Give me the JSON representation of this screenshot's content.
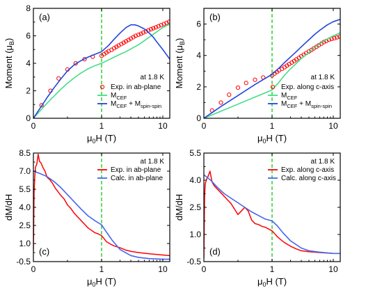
{
  "chart_data": [
    {
      "id": "a",
      "type": "line",
      "panel_label": "(a)",
      "ylabel": {
        "main": "Moment (μ",
        "sub": "B",
        "end": ")"
      },
      "xlabel": {
        "main": "μ",
        "sub": "0",
        "end": "H (T)"
      },
      "annotation": "at 1.8 K",
      "x_scale": "linear below 1 T, logarithmic above 1 T",
      "xlim": [
        0,
        13
      ],
      "ylim": [
        0,
        8
      ],
      "xticks": [
        0,
        1,
        10
      ],
      "yticks": [
        0,
        2,
        4,
        6,
        8
      ],
      "vline_x": 1,
      "grid": false,
      "legend_position": "right-center",
      "series": [
        {
          "legend": {
            "main": "Exp. in ab-plane",
            "sub": "",
            "end": ""
          },
          "style": "open-circle",
          "color": "#ff0000",
          "x": [
            0.12,
            0.25,
            0.37,
            0.5,
            0.62,
            0.75,
            0.87,
            1.0,
            1.1,
            1.2,
            1.3,
            1.45,
            1.6,
            1.75,
            1.9,
            2.1,
            2.3,
            2.5,
            2.75,
            3.0,
            3.3,
            3.6,
            4.0,
            4.4,
            4.8,
            5.3,
            5.8,
            6.4,
            7.0,
            7.7,
            8.5,
            9.4,
            10.4,
            11.5,
            12.7
          ],
          "y": [
            0.95,
            2.0,
            2.9,
            3.55,
            4.0,
            4.3,
            4.48,
            4.55,
            4.67,
            4.78,
            4.88,
            4.98,
            5.1,
            5.2,
            5.3,
            5.4,
            5.5,
            5.6,
            5.7,
            5.8,
            5.9,
            6.0,
            6.08,
            6.15,
            6.24,
            6.32,
            6.4,
            6.48,
            6.55,
            6.62,
            6.7,
            6.78,
            6.86,
            6.94,
            7.02
          ]
        },
        {
          "legend": {
            "main": "M",
            "sub": "CEF",
            "end": ""
          },
          "style": "line",
          "color": "#44dd88",
          "x": [
            0,
            0.1,
            0.2,
            0.3,
            0.4,
            0.5,
            0.6,
            0.7,
            0.8,
            0.9,
            1.0,
            1.3,
            1.6,
            2,
            2.5,
            3,
            4,
            5,
            6,
            8,
            10,
            13
          ],
          "y": [
            0,
            0.55,
            1.1,
            1.6,
            2.1,
            2.55,
            2.95,
            3.3,
            3.6,
            3.82,
            4.0,
            4.25,
            4.45,
            4.65,
            4.85,
            5.05,
            5.35,
            5.65,
            5.9,
            6.3,
            6.6,
            6.85
          ]
        },
        {
          "legend": {
            "main": "M",
            "sub": "CEF",
            "end": " + M",
            "sub2": "spin-spin"
          },
          "style": "line",
          "color": "#2244dd",
          "x": [
            0,
            0.1,
            0.2,
            0.3,
            0.4,
            0.5,
            0.6,
            0.7,
            0.8,
            0.9,
            1.0,
            1.3,
            1.6,
            2,
            2.5,
            3,
            3.5,
            4,
            5,
            6,
            7,
            8,
            10,
            13
          ],
          "y": [
            0,
            0.75,
            1.5,
            2.2,
            2.85,
            3.45,
            3.9,
            4.2,
            4.45,
            4.65,
            4.85,
            5.3,
            5.75,
            6.2,
            6.6,
            6.8,
            6.8,
            6.72,
            6.5,
            6.2,
            5.9,
            5.55,
            5.0,
            4.3
          ]
        }
      ]
    },
    {
      "id": "b",
      "type": "line",
      "panel_label": "(b)",
      "ylabel": {
        "main": "Moment (μ",
        "sub": "B",
        "end": ")"
      },
      "xlabel": {
        "main": "μ",
        "sub": "0",
        "end": "H (T)"
      },
      "annotation": "at 1.8 K",
      "x_scale": "linear below 1 T, logarithmic above 1 T",
      "xlim": [
        0,
        13
      ],
      "ylim": [
        0,
        7
      ],
      "xticks": [
        0,
        1,
        10
      ],
      "yticks": [
        0,
        2,
        4,
        6
      ],
      "vline_x": 1,
      "grid": false,
      "legend_position": "right-center",
      "series": [
        {
          "legend": {
            "main": "Exp. along c-axis",
            "sub": "",
            "end": ""
          },
          "style": "open-circle",
          "color": "#ff0000",
          "x": [
            0.12,
            0.25,
            0.37,
            0.5,
            0.62,
            0.75,
            0.87,
            1.0,
            1.1,
            1.2,
            1.3,
            1.45,
            1.6,
            1.75,
            1.9,
            2.1,
            2.3,
            2.5,
            2.75,
            3.0,
            3.3,
            3.6,
            4.0,
            4.4,
            4.8,
            5.3,
            5.8,
            6.4,
            7.0,
            7.7,
            8.5,
            9.4,
            10.4,
            11.5,
            12.7
          ],
          "y": [
            0.5,
            1.0,
            1.5,
            1.95,
            2.25,
            2.45,
            2.6,
            2.72,
            2.85,
            2.95,
            3.05,
            3.15,
            3.25,
            3.35,
            3.45,
            3.55,
            3.65,
            3.75,
            3.85,
            3.95,
            4.05,
            4.15,
            4.25,
            4.35,
            4.45,
            4.55,
            4.65,
            4.75,
            4.85,
            4.92,
            5.0,
            5.05,
            5.1,
            5.15,
            5.2
          ]
        },
        {
          "legend": {
            "main": "M",
            "sub": "CEF",
            "end": ""
          },
          "style": "line",
          "color": "#44dd88",
          "x": [
            0,
            0.25,
            0.5,
            0.75,
            1.0,
            1.3,
            1.6,
            2,
            2.5,
            3,
            4,
            5,
            6,
            8,
            10,
            13
          ],
          "y": [
            0,
            0.45,
            0.9,
            1.35,
            1.8,
            2.3,
            2.75,
            3.15,
            3.5,
            3.8,
            4.2,
            4.5,
            4.75,
            5.05,
            5.25,
            5.45
          ]
        },
        {
          "legend": {
            "main": "M",
            "sub": "CEF",
            "end": " + M",
            "sub2": "spin-spin"
          },
          "style": "line",
          "color": "#2244dd",
          "x": [
            0,
            0.25,
            0.5,
            0.75,
            1.0,
            1.3,
            1.6,
            2,
            2.5,
            3,
            4,
            5,
            6,
            8,
            10,
            13
          ],
          "y": [
            0,
            0.75,
            1.45,
            2.15,
            2.8,
            3.2,
            3.55,
            3.9,
            4.25,
            4.55,
            5.0,
            5.35,
            5.6,
            5.95,
            6.15,
            6.3
          ]
        }
      ]
    },
    {
      "id": "c",
      "type": "line",
      "panel_label": "(c)",
      "ylabel": {
        "main": "dM/dH",
        "sub": "",
        "end": ""
      },
      "xlabel": {
        "main": "μ",
        "sub": "0",
        "end": "H (T)"
      },
      "annotation": "at 1.8 K",
      "x_scale": "linear below 1 T, logarithmic above 1 T",
      "xlim": [
        0,
        13
      ],
      "ylim": [
        -0.5,
        8.5
      ],
      "xticks": [
        0,
        1,
        10
      ],
      "yticks": [
        -0.5,
        1.0,
        2.5,
        4.0,
        5.5,
        7.0,
        8.5
      ],
      "ytick_labels": [
        "-0.5",
        "1.0",
        "2.5",
        "4.0",
        "5.5",
        "7.0",
        "8.5"
      ],
      "vline_x": 1,
      "grid": false,
      "legend_position": "top-right",
      "series": [
        {
          "legend": {
            "main": "Exp. in ab-plane",
            "sub": "",
            "end": ""
          },
          "style": "noisy-line",
          "color": "#ff0000",
          "x": [
            0,
            0.01,
            0.02,
            0.03,
            0.05,
            0.07,
            0.09,
            0.11,
            0.14,
            0.17,
            0.2,
            0.24,
            0.28,
            0.32,
            0.36,
            0.4,
            0.45,
            0.5,
            0.55,
            0.6,
            0.65,
            0.7,
            0.75,
            0.8,
            0.85,
            0.9,
            0.95,
            1.0,
            1.1,
            1.2,
            1.4,
            1.6,
            2.0,
            2.5,
            3.0,
            4.0,
            6.0,
            10.0,
            13.0
          ],
          "y": [
            0.4,
            5.2,
            6.5,
            7.3,
            7.6,
            8.4,
            7.8,
            7.7,
            7.3,
            7.0,
            6.5,
            6.3,
            6.0,
            5.6,
            5.3,
            5.0,
            4.7,
            4.2,
            3.9,
            3.5,
            3.2,
            2.9,
            2.6,
            2.3,
            2.1,
            1.9,
            1.8,
            1.65,
            1.4,
            1.15,
            0.95,
            0.8,
            0.65,
            0.45,
            0.35,
            0.25,
            0.15,
            0.05,
            0.0
          ]
        },
        {
          "legend": {
            "main": "Calc. in ab-plane",
            "sub": "",
            "end": ""
          },
          "style": "line",
          "color": "#4466ee",
          "x": [
            0,
            0.1,
            0.2,
            0.3,
            0.4,
            0.5,
            0.6,
            0.7,
            0.8,
            0.9,
            1.0,
            1.2,
            1.5,
            2.0,
            3.0,
            4.0,
            6.0,
            10.0,
            13.0
          ],
          "y": [
            7.0,
            6.8,
            6.55,
            6.15,
            5.65,
            5.05,
            4.45,
            3.85,
            3.3,
            2.9,
            2.55,
            1.95,
            1.25,
            0.5,
            0.0,
            -0.15,
            -0.25,
            -0.3,
            -0.3
          ]
        }
      ]
    },
    {
      "id": "d",
      "type": "line",
      "panel_label": "(d)",
      "ylabel": {
        "main": "dM/dH",
        "sub": "",
        "end": ""
      },
      "xlabel": {
        "main": "μ",
        "sub": "0",
        "end": "H (T)"
      },
      "annotation": "at 1.8 K",
      "x_scale": "linear below 1 T, logarithmic above 1 T",
      "xlim": [
        0,
        13
      ],
      "ylim": [
        -0.5,
        5.5
      ],
      "xticks": [
        0,
        1,
        10
      ],
      "yticks": [
        -0.5,
        1.0,
        2.5,
        4.0,
        5.5
      ],
      "ytick_labels": [
        "-0.5",
        "1.0",
        "2.5",
        "4.0",
        "5.5"
      ],
      "vline_x": 1,
      "grid": false,
      "legend_position": "top-right",
      "series": [
        {
          "legend": {
            "main": "Exp.  along c-axis",
            "sub": "",
            "end": ""
          },
          "style": "noisy-line",
          "color": "#ff0000",
          "x": [
            0,
            0.01,
            0.02,
            0.04,
            0.06,
            0.09,
            0.12,
            0.15,
            0.2,
            0.25,
            0.3,
            0.35,
            0.4,
            0.45,
            0.5,
            0.55,
            0.6,
            0.65,
            0.7,
            0.75,
            0.8,
            0.85,
            0.9,
            0.95,
            1.0,
            1.1,
            1.2,
            1.4,
            1.6,
            2.0,
            2.5,
            3.0,
            4.0,
            6.0,
            10.0,
            13.0
          ],
          "y": [
            -0.3,
            3.1,
            3.8,
            4.05,
            4.2,
            4.5,
            3.9,
            3.7,
            3.5,
            3.3,
            3.1,
            2.9,
            2.7,
            2.4,
            2.1,
            2.3,
            2.5,
            2.3,
            1.8,
            1.6,
            1.55,
            1.45,
            1.4,
            1.3,
            1.2,
            1.05,
            0.9,
            0.7,
            0.55,
            0.35,
            0.2,
            0.1,
            0.05,
            0.0,
            -0.05,
            -0.05
          ]
        },
        {
          "legend": {
            "main": "Calc. along c-axis",
            "sub": "",
            "end": ""
          },
          "style": "line",
          "color": "#4466ee",
          "x": [
            0,
            0.1,
            0.2,
            0.3,
            0.4,
            0.5,
            0.6,
            0.7,
            0.8,
            0.9,
            1.0,
            1.2,
            1.5,
            2.0,
            3.0,
            4.0,
            6.0,
            10.0,
            13.0
          ],
          "y": [
            4.3,
            4.0,
            3.6,
            3.25,
            3.0,
            2.75,
            2.5,
            2.25,
            2.05,
            1.85,
            1.75,
            1.5,
            1.1,
            0.65,
            0.25,
            0.1,
            0.02,
            -0.05,
            -0.05
          ]
        }
      ]
    }
  ],
  "colors": {
    "vline": "#22cc22",
    "axis": "#000000"
  }
}
